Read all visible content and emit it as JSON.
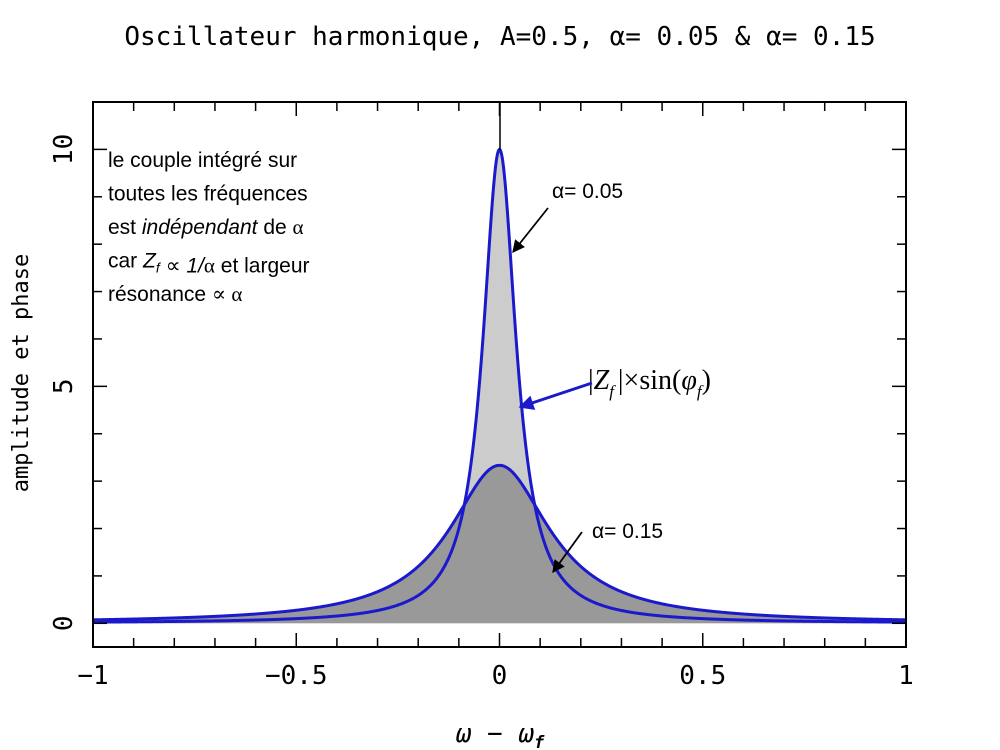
{
  "chart_data": {
    "type": "area",
    "title": "Oscillateur harmonique, A=0.5, α= 0.05 & α= 0.15",
    "xlabel": "ω − ω",
    "xlabel_sub": "f",
    "ylabel": "amplitude et phase",
    "xlim": [
      -1,
      1
    ],
    "ylim": [
      -0.5,
      11
    ],
    "x_ticks": [
      -1,
      -0.5,
      0,
      0.5,
      1
    ],
    "x_tick_labels": [
      "−1",
      "−0.5",
      "0",
      "0.5",
      "1"
    ],
    "y_ticks": [
      0,
      5,
      10
    ],
    "y_tick_labels": [
      "0",
      "5",
      "10"
    ],
    "grid": false,
    "series": [
      {
        "alpha": 0.05,
        "amplitude": 0.5,
        "peak": 10,
        "fill_color": "#cccccc"
      },
      {
        "alpha": 0.15,
        "amplitude": 0.5,
        "peak": 3.33,
        "fill_color": "#999999"
      }
    ],
    "curve_color": "#1a1acc",
    "annotations": {
      "note_lines": [
        {
          "parts": [
            {
              "t": "le couple intégré sur",
              "s": "n"
            }
          ]
        },
        {
          "parts": [
            {
              "t": "toutes les fréquences",
              "s": "n"
            }
          ]
        },
        {
          "parts": [
            {
              "t": "est ",
              "s": "n"
            },
            {
              "t": "indépendant",
              "s": "i"
            },
            {
              "t": " de ",
              "s": "n"
            },
            {
              "t": "α",
              "s": "g"
            }
          ]
        },
        {
          "parts": [
            {
              "t": "car ",
              "s": "n"
            },
            {
              "t": "Z",
              "s": "i"
            },
            {
              "t": "f",
              "s": "isub"
            },
            {
              "t": " ∝ ",
              "s": "n"
            },
            {
              "t": "1/",
              "s": "i"
            },
            {
              "t": "α",
              "s": "g"
            },
            {
              "t": " et largeur",
              "s": "n"
            }
          ]
        },
        {
          "parts": [
            {
              "t": "résonance ",
              "s": "n"
            },
            {
              "t": "∝ α",
              "s": "g"
            }
          ]
        }
      ],
      "label_a005": "α= 0.05",
      "label_a015": "α= 0.15",
      "formula": {
        "bar": "|",
        "Z": "Z",
        "Z_sub": "f",
        "times": "|×sin(",
        "phi": "φ",
        "phi_sub": "f",
        "close": ")"
      }
    }
  }
}
